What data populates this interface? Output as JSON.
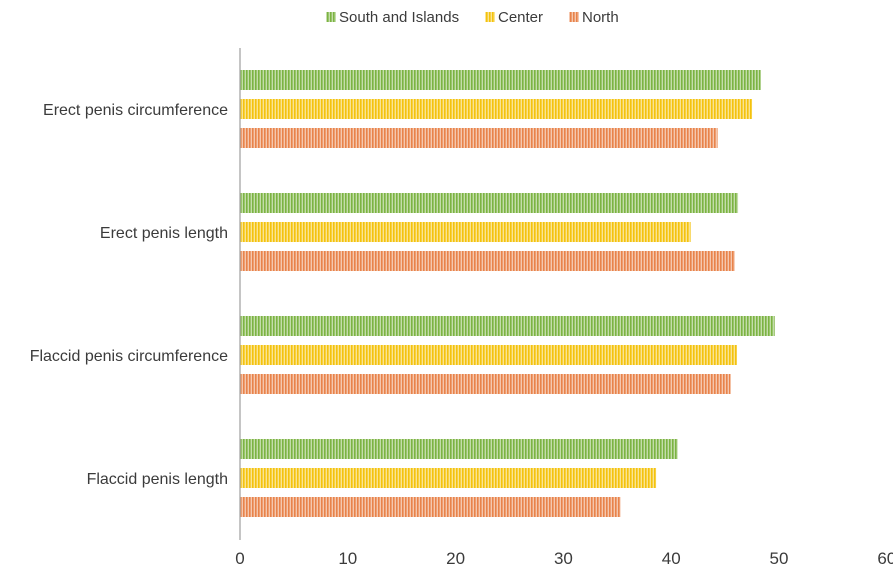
{
  "chart_data": {
    "type": "bar",
    "orientation": "horizontal",
    "title": "",
    "xlabel": "",
    "ylabel": "",
    "categories": [
      "Erect penis circumference",
      "Erect penis length",
      "Flaccid penis circumference",
      "Flaccid penis length"
    ],
    "series": [
      {
        "name": "South and Islands",
        "color": "#7cb342",
        "values": [
          48.3,
          46.2,
          49.6,
          40.6
        ]
      },
      {
        "name": "Center",
        "color": "#f4c20d",
        "values": [
          47.5,
          41.8,
          46.1,
          38.6
        ]
      },
      {
        "name": "North",
        "color": "#e8834a",
        "values": [
          44.3,
          45.9,
          45.5,
          35.3
        ]
      }
    ],
    "xlim": [
      0,
      60
    ],
    "xticks": [
      "0",
      "10",
      "20",
      "30",
      "40",
      "50",
      "60"
    ],
    "grid": false,
    "legend_position": "top",
    "bar_pattern": "vertical-hatch"
  }
}
